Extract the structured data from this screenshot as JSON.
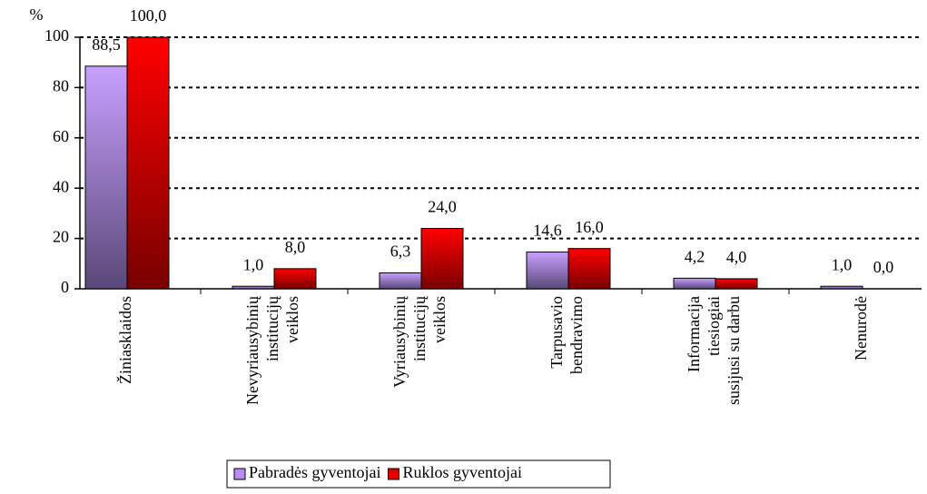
{
  "chart_data": {
    "type": "bar",
    "ylabel": "%",
    "categories": [
      [
        "Žiniasklaidos"
      ],
      [
        "Nevyriausybinių",
        "institucijų",
        "veiklos"
      ],
      [
        "Vyriausybinių",
        "institucijų",
        "veiklos"
      ],
      [
        "Tarpusavio",
        "bendravimo"
      ],
      [
        "Informacija",
        "tiesiogiai",
        "susijusi su darbu"
      ],
      [
        "Nenurodė"
      ]
    ],
    "series": [
      {
        "name": "Pabradės gyventojai",
        "color": "#b88cf0",
        "values": [
          88.5,
          1.0,
          6.3,
          14.6,
          4.2,
          1.0
        ],
        "value_labels": [
          "88,5",
          "1,0",
          "6,3",
          "14,6",
          "4,2",
          "1,0"
        ]
      },
      {
        "name": "Ruklos gyventojai",
        "color": "#e00000",
        "values": [
          100.0,
          8.0,
          24.0,
          16.0,
          4.0,
          0.0
        ],
        "value_labels": [
          "100,0",
          "8,0",
          "24,0",
          "16,0",
          "4,0",
          "0,0"
        ]
      }
    ],
    "ylim": [
      0,
      100
    ],
    "yticks": [
      0,
      20,
      40,
      60,
      80,
      100
    ],
    "grid": true,
    "legend": "bottom"
  }
}
